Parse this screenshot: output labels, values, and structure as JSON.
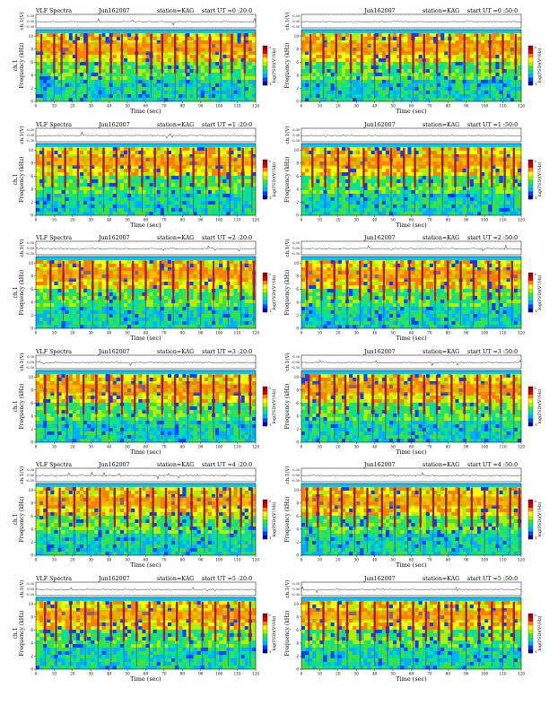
{
  "colors": {
    "colormap": [
      "#0000a0",
      "#0040ff",
      "#00b0ff",
      "#00e0a0",
      "#40e040",
      "#b0f000",
      "#ffff00",
      "#ff8000",
      "#e00000",
      "#a00000"
    ],
    "background_band": "#00c8ff",
    "waveform": "#000000"
  },
  "chart_data": [
    {
      "type": "heatmap",
      "header": {
        "title": "VLF Spectra",
        "date": "Jun162007",
        "station": "station=KAG",
        "start": "start UT =0 :20:0"
      },
      "upper_ylabel": "ch.1(V)",
      "upper_yticks": [
        "0.30",
        "0.00",
        "-0.30"
      ],
      "ylabel_left": "ch.1",
      "ylabel": "Frequency (kHz)",
      "xlabel": "Time (sec)",
      "xticks": [
        0,
        10,
        20,
        30,
        40,
        50,
        60,
        70,
        80,
        90,
        100,
        110,
        120
      ],
      "yticks": [
        0,
        2,
        4,
        6,
        8,
        10
      ],
      "xlim": [
        0,
        120
      ],
      "ylim": [
        0,
        11
      ],
      "colorbar_label": "log(PSD)(V²/Hz)",
      "colorbar_ticks": [
        "0",
        "-1"
      ],
      "bursts": [
        3,
        10,
        14,
        22,
        28,
        35,
        41,
        47,
        55,
        63,
        69,
        76,
        82,
        88,
        95,
        101,
        107,
        114
      ],
      "seed": 11
    },
    {
      "type": "heatmap",
      "header": {
        "title": "",
        "date": "Jun162007",
        "station": "station=KAG",
        "start": "start UT =0 :50:0"
      },
      "upper_ylabel": "ch.1(V)",
      "upper_yticks": [
        "0.30",
        "0.00",
        "-0.30"
      ],
      "ylabel_left": "",
      "ylabel": "Frequency (kHz)",
      "xlabel": "Time (sec)",
      "xticks": [
        0,
        10,
        20,
        30,
        40,
        50,
        60,
        70,
        80,
        90,
        100,
        110,
        120
      ],
      "yticks": [
        0,
        2,
        4,
        6,
        8,
        10
      ],
      "xlim": [
        0,
        120
      ],
      "ylim": [
        0,
        11
      ],
      "colorbar_label": "log(PSD)(V²/Hz)",
      "colorbar_ticks": [
        "0",
        "-1"
      ],
      "bursts": [
        5,
        12,
        19,
        27,
        33,
        40,
        48,
        54,
        61,
        67,
        74,
        81,
        89,
        96,
        103,
        110,
        117
      ],
      "seed": 23
    },
    {
      "type": "heatmap",
      "header": {
        "title": "VLF Spectra",
        "date": "Jun162007",
        "station": "station=KAG",
        "start": "start UT =1 :20:0"
      },
      "upper_ylabel": "ch.1(V)",
      "upper_yticks": [
        "0.30",
        "0.00",
        "-0.30"
      ],
      "ylabel_left": "ch.1",
      "ylabel": "Frequency (kHz)",
      "xlabel": "Time (sec)",
      "xticks": [
        0,
        10,
        20,
        30,
        40,
        50,
        60,
        70,
        80,
        90,
        100,
        110,
        120
      ],
      "yticks": [
        0,
        2,
        4,
        6,
        8,
        10
      ],
      "xlim": [
        0,
        120
      ],
      "ylim": [
        0,
        11
      ],
      "colorbar_label": "log(PSD)(V²/Hz)",
      "colorbar_ticks": [
        "0",
        "-1"
      ],
      "bursts": [
        4,
        9,
        16,
        23,
        30,
        37,
        44,
        51,
        58,
        65,
        72,
        79,
        86,
        93,
        100,
        106,
        113,
        118
      ],
      "seed": 37
    },
    {
      "type": "heatmap",
      "header": {
        "title": "",
        "date": "Jun162007",
        "station": "station=KAG",
        "start": "start UT =1 :50:0"
      },
      "upper_ylabel": "ch.1(V)",
      "upper_yticks": [
        "0.30",
        "0.00",
        "-0.30"
      ],
      "ylabel_left": "",
      "ylabel": "Frequency (kHz)",
      "xlabel": "Time (sec)",
      "xticks": [
        0,
        10,
        20,
        30,
        40,
        50,
        60,
        70,
        80,
        90,
        100,
        110,
        120
      ],
      "yticks": [
        0,
        2,
        4,
        6,
        8,
        10
      ],
      "xlim": [
        0,
        120
      ],
      "ylim": [
        0,
        11
      ],
      "colorbar_label": "log(PSD)(V²/Hz)",
      "colorbar_ticks": [
        "0",
        "-1"
      ],
      "bursts": [
        6,
        13,
        20,
        26,
        34,
        42,
        49,
        56,
        62,
        70,
        77,
        84,
        91,
        98,
        104,
        111,
        116
      ],
      "seed": 41
    },
    {
      "type": "heatmap",
      "header": {
        "title": "VLF Spectra",
        "date": "Jun162007",
        "station": "station=KAG",
        "start": "start UT =2 :20:0"
      },
      "upper_ylabel": "ch.1(V)",
      "upper_yticks": [
        "0.30",
        "0.00",
        "-0.30"
      ],
      "ylabel_left": "ch.1",
      "ylabel": "Frequency (kHz)",
      "xlabel": "Time (sec)",
      "xticks": [
        0,
        10,
        20,
        30,
        40,
        50,
        60,
        70,
        80,
        90,
        100,
        110,
        120
      ],
      "yticks": [
        0,
        2,
        4,
        6,
        8,
        10
      ],
      "xlim": [
        0,
        120
      ],
      "ylim": [
        0,
        11
      ],
      "colorbar_label": "log(PSD)(V²/Hz)",
      "colorbar_ticks": [
        "0",
        "-1"
      ],
      "bursts": [
        8,
        15,
        24,
        31,
        39,
        46,
        53,
        60,
        68,
        75,
        83,
        90,
        97,
        105,
        112,
        119
      ],
      "seed": 53
    },
    {
      "type": "heatmap",
      "header": {
        "title": "",
        "date": "Jun162007",
        "station": "station=KAG",
        "start": "start UT =2 :50:0"
      },
      "upper_ylabel": "ch.1(V)",
      "upper_yticks": [
        "0.30",
        "0.00",
        "-0.30"
      ],
      "ylabel_left": "",
      "ylabel": "Frequency (kHz)",
      "xlabel": "Time (sec)",
      "xticks": [
        0,
        10,
        20,
        30,
        40,
        50,
        60,
        70,
        80,
        90,
        100,
        110,
        120
      ],
      "yticks": [
        0,
        2,
        4,
        6,
        8,
        10
      ],
      "xlim": [
        0,
        120
      ],
      "ylim": [
        0,
        11
      ],
      "colorbar_label": "log(PSD)(V²/Hz)",
      "colorbar_ticks": [
        "0",
        "-1"
      ],
      "bursts": [
        3,
        11,
        18,
        25,
        32,
        38,
        45,
        52,
        59,
        66,
        73,
        80,
        87,
        94,
        102,
        108,
        115
      ],
      "seed": 67
    },
    {
      "type": "heatmap",
      "header": {
        "title": "VLF Spectra",
        "date": "Jun162007",
        "station": "station=KAG",
        "start": "start UT =3 :20:0"
      },
      "upper_ylabel": "ch.1(V)",
      "upper_yticks": [
        "0.30",
        "0.00",
        "-0.30"
      ],
      "ylabel_left": "ch.1",
      "ylabel": "Frequency (kHz)",
      "xlabel": "Time (sec)",
      "xticks": [
        0,
        10,
        20,
        30,
        40,
        50,
        60,
        70,
        80,
        90,
        100,
        110,
        120
      ],
      "yticks": [
        0,
        2,
        4,
        6,
        8,
        10
      ],
      "xlim": [
        0,
        120
      ],
      "ylim": [
        0,
        11
      ],
      "colorbar_label": "log(PSD)(V²/Hz)",
      "colorbar_ticks": [
        "0",
        "-1"
      ],
      "bursts": [
        5,
        12,
        17,
        26,
        33,
        40,
        47,
        54,
        61,
        69,
        76,
        83,
        90,
        97,
        104,
        111,
        117
      ],
      "seed": 71
    },
    {
      "type": "heatmap",
      "header": {
        "title": "",
        "date": "Jun162007",
        "station": "station=KAG",
        "start": "start UT =3 :50:0"
      },
      "upper_ylabel": "ch.1(V)",
      "upper_yticks": [
        "0.30",
        "0.00",
        "-0.30"
      ],
      "ylabel_left": "",
      "ylabel": "Frequency (kHz)",
      "xlabel": "Time (sec)",
      "xticks": [
        0,
        10,
        20,
        30,
        40,
        50,
        60,
        70,
        80,
        90,
        100,
        110,
        120
      ],
      "yticks": [
        0,
        2,
        4,
        6,
        8,
        10
      ],
      "xlim": [
        0,
        120
      ],
      "ylim": [
        0,
        11
      ],
      "colorbar_label": "log(PSD)(V²/Hz)",
      "colorbar_ticks": [
        "0",
        "-1"
      ],
      "bursts": [
        4,
        10,
        18,
        24,
        31,
        39,
        46,
        53,
        60,
        67,
        74,
        82,
        89,
        96,
        103,
        109,
        116
      ],
      "seed": 83
    },
    {
      "type": "heatmap",
      "header": {
        "title": "VLF Spectra",
        "date": "Jun162007",
        "station": "station=KAG",
        "start": "start UT =4 :20:0"
      },
      "upper_ylabel": "ch.1(V)",
      "upper_yticks": [
        "0.30",
        "0.00",
        "-0.30"
      ],
      "ylabel_left": "ch.1",
      "ylabel": "Frequency (kHz)",
      "xlabel": "Time (sec)",
      "xticks": [
        0,
        10,
        20,
        30,
        40,
        50,
        60,
        70,
        80,
        90,
        100,
        110,
        120
      ],
      "yticks": [
        0,
        2,
        4,
        6,
        8,
        10
      ],
      "xlim": [
        0,
        120
      ],
      "ylim": [
        0,
        11
      ],
      "colorbar_label": "log(PSD)(V²/Hz)",
      "colorbar_ticks": [
        "0",
        "-1"
      ],
      "bursts": [
        6,
        13,
        21,
        28,
        35,
        43,
        50,
        57,
        64,
        71,
        78,
        85,
        92,
        99,
        106,
        112,
        118
      ],
      "seed": 97
    },
    {
      "type": "heatmap",
      "header": {
        "title": "",
        "date": "Jun162007",
        "station": "station=KAG",
        "start": "start UT =4 :50:0"
      },
      "upper_ylabel": "ch.1(V)",
      "upper_yticks": [
        "0.30",
        "0.00",
        "-0.30"
      ],
      "ylabel_left": "",
      "ylabel": "Frequency (kHz)",
      "xlabel": "Time (sec)",
      "xticks": [
        0,
        10,
        20,
        30,
        40,
        50,
        60,
        70,
        80,
        90,
        100,
        110,
        120
      ],
      "yticks": [
        0,
        2,
        4,
        6,
        8,
        10
      ],
      "xlim": [
        0,
        120
      ],
      "ylim": [
        0,
        11
      ],
      "colorbar_label": "log(PSD)(V²/Hz)",
      "colorbar_ticks": [
        "0",
        "-1"
      ],
      "bursts": [
        3,
        9,
        16,
        22,
        29,
        36,
        44,
        51,
        58,
        65,
        72,
        79,
        86,
        93,
        100,
        107,
        114,
        119
      ],
      "seed": 101
    },
    {
      "type": "heatmap",
      "header": {
        "title": "VLF Spectra",
        "date": "Jun162007",
        "station": "station=KAG",
        "start": "start UT =5 :20:0"
      },
      "upper_ylabel": "ch.1(V)",
      "upper_yticks": [
        "0.30",
        "0.00",
        "-0.30"
      ],
      "ylabel_left": "ch.1",
      "ylabel": "Frequency (kHz)",
      "xlabel": "Time (sec)",
      "xticks": [
        0,
        10,
        20,
        30,
        40,
        50,
        60,
        70,
        80,
        90,
        100,
        110,
        120
      ],
      "yticks": [
        0,
        2,
        4,
        6,
        8,
        10
      ],
      "xlim": [
        0,
        120
      ],
      "ylim": [
        0,
        11
      ],
      "colorbar_label": "log(PSD)(V²/Hz)",
      "colorbar_ticks": [
        "0",
        "-1"
      ],
      "bursts": [
        5,
        11,
        19,
        27,
        34,
        41,
        48,
        55,
        62,
        70,
        77,
        84,
        91,
        98,
        105,
        111,
        117
      ],
      "seed": 113
    },
    {
      "type": "heatmap",
      "header": {
        "title": "",
        "date": "Jun162007",
        "station": "station=KAG",
        "start": "start UT =5 :50:0"
      },
      "upper_ylabel": "ch.1(V)",
      "upper_yticks": [
        "0.30",
        "0.00",
        "-0.30"
      ],
      "ylabel_left": "",
      "ylabel": "Frequency (kHz)",
      "xlabel": "Time (sec)",
      "xticks": [
        0,
        10,
        20,
        30,
        40,
        50,
        60,
        70,
        80,
        90,
        100,
        110,
        120
      ],
      "yticks": [
        0,
        2,
        4,
        6,
        8,
        10
      ],
      "xlim": [
        0,
        120
      ],
      "ylim": [
        0,
        11
      ],
      "colorbar_label": "log(PSD)(V²/Hz)",
      "colorbar_ticks": [
        "0",
        "-1"
      ],
      "bursts": [
        4,
        12,
        20,
        25,
        32,
        40,
        47,
        54,
        61,
        68,
        75,
        82,
        90,
        97,
        104,
        110,
        116
      ],
      "seed": 127
    }
  ]
}
